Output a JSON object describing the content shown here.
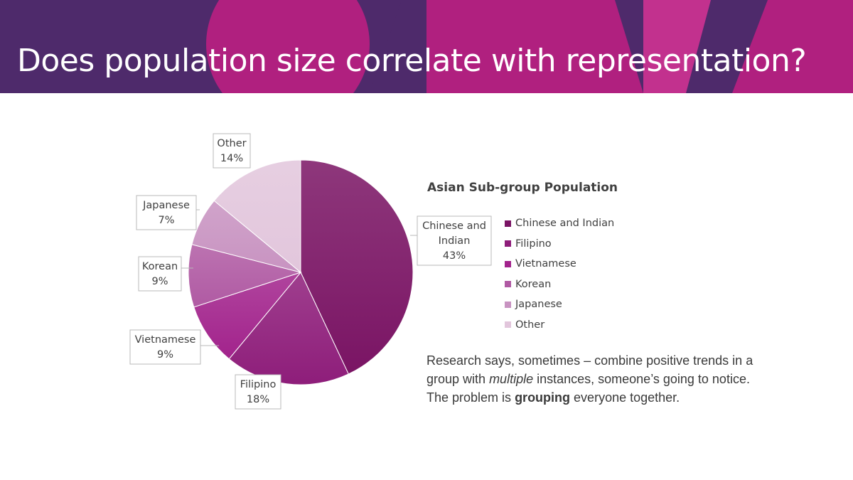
{
  "slide": {
    "title": "Does population size correlate with representation?"
  },
  "colors": {
    "banner_base": "#4e2a6b",
    "banner_accent": "#b0207f",
    "banner_accent_light": "#c2318e"
  },
  "chart_data": {
    "type": "pie",
    "title": "Asian Sub-group Population",
    "categories": [
      "Chinese and Indian",
      "Filipino",
      "Vietnamese",
      "Korean",
      "Japanese",
      "Other"
    ],
    "values": [
      43,
      18,
      9,
      9,
      7,
      14
    ],
    "unit": "%",
    "colors": [
      "#7a1464",
      "#8e1d7a",
      "#a2238c",
      "#b05aa3",
      "#c893c1",
      "#e2c6dc"
    ],
    "data_labels": [
      {
        "lines": [
          "Chinese and",
          "Indian",
          "43%"
        ]
      },
      {
        "lines": [
          "Filipino",
          "18%"
        ]
      },
      {
        "lines": [
          "Vietnamese",
          "9%"
        ]
      },
      {
        "lines": [
          "Korean",
          "9%"
        ]
      },
      {
        "lines": [
          "Japanese",
          "7%"
        ]
      },
      {
        "lines": [
          "Other",
          "14%"
        ]
      }
    ],
    "legend_position": "right"
  },
  "note": {
    "before_em": "Research says, sometimes – combine positive trends in a group with ",
    "em": "multiple",
    "middle": " instances, someone’s going to notice. The problem is ",
    "strong": "grouping",
    "after": " everyone together."
  }
}
